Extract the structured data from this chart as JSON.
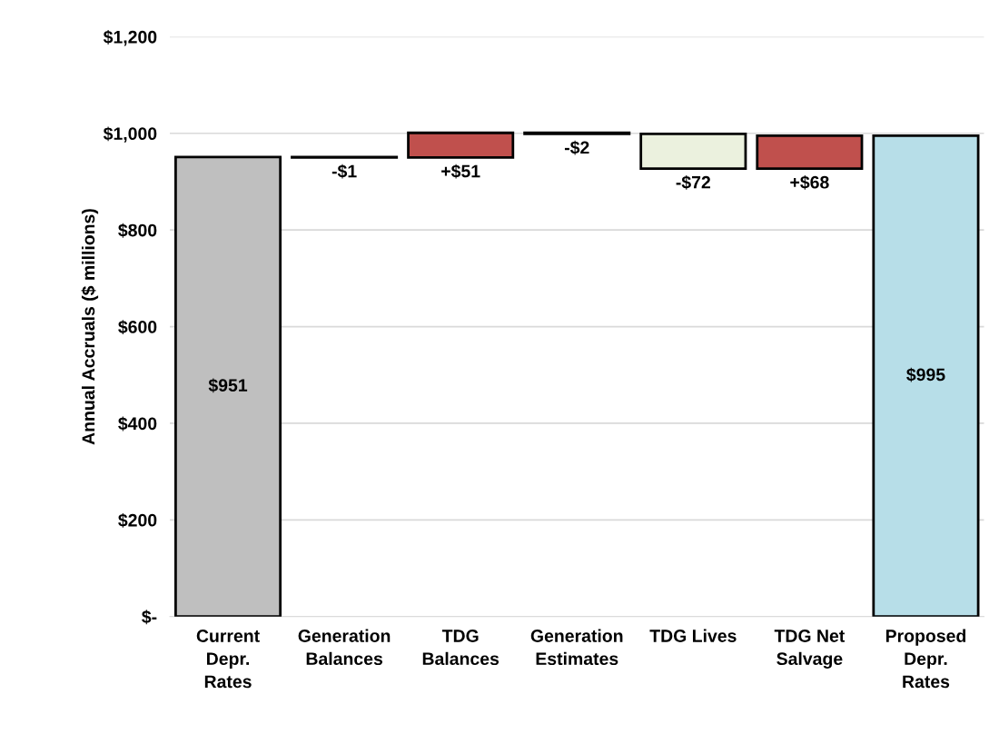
{
  "chart_data": {
    "type": "bar",
    "ylabel": "Annual Accruals ($ millions)",
    "categories": [
      "Current\nDepr.\nRates",
      "Generation\nBalances",
      "TDG\nBalances",
      "Generation\nEstimates",
      "TDG Lives",
      "TDG Net\nSalvage",
      "Proposed\nDepr.\nRates"
    ],
    "values": [
      951,
      -1,
      51,
      -2,
      -72,
      68,
      995
    ],
    "base": [
      0,
      951,
      950,
      1001,
      999,
      927,
      0
    ],
    "colors": [
      "#bfbfbf",
      "#ebf1de",
      "#c0504d",
      "#ebf1de",
      "#ebf1de",
      "#c0504d",
      "#b7dee8"
    ],
    "value_labels": [
      "$951",
      "-$1",
      "+$51",
      "-$2",
      "-$72",
      "+$68",
      "$995"
    ],
    "ylim": [
      0,
      1200
    ],
    "yticks": [
      {
        "value": 0,
        "label": "$-"
      },
      {
        "value": 200,
        "label": "$200"
      },
      {
        "value": 400,
        "label": "$400"
      },
      {
        "value": 600,
        "label": "$600"
      },
      {
        "value": 800,
        "label": "$800"
      },
      {
        "value": 1000,
        "label": "$1,000"
      },
      {
        "value": 1200,
        "label": "$1,200"
      }
    ],
    "grid": "y"
  }
}
